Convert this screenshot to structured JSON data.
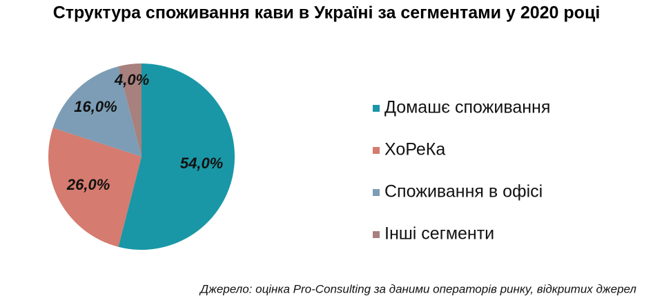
{
  "chart_data": {
    "type": "pie",
    "title": "Структура споживання кави в Україні за сегментами у 2020 році",
    "categories": [
      "Домашє споживання",
      "ХоРеКа",
      "Споживання в офісі",
      "Інші сегменти"
    ],
    "values": [
      54,
      26,
      16,
      4
    ],
    "value_labels": [
      "54,0%",
      "26,0%",
      "16,0%",
      "4,0%"
    ],
    "colors": [
      "#1a97a6",
      "#d57b6f",
      "#7c9db5",
      "#a8807e"
    ],
    "source": "Джерело: оцінка Pro-Consulting за даними операторів ринку, відкритих джерел"
  }
}
